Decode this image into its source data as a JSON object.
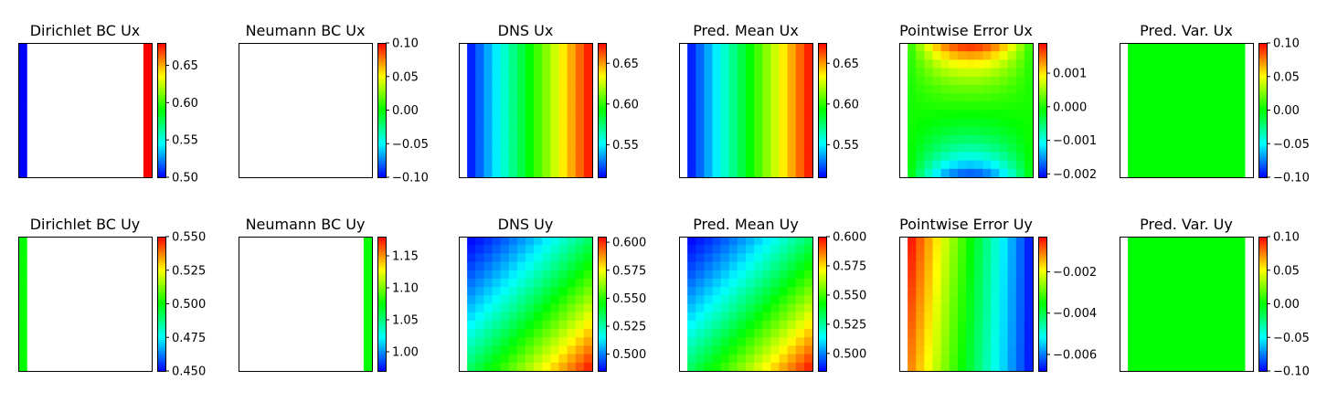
{
  "colormap": [
    "#0000ff",
    "#00ffff",
    "#00ff00",
    "#ffff00",
    "#ff0000"
  ],
  "chart_data": [
    {
      "type": "heatmap",
      "title": "Dirichlet BC Ux",
      "field": "dirichlet_x",
      "masked": true,
      "range": [
        0.5,
        0.68
      ],
      "grid": [
        16,
        16
      ],
      "colorbar_ticks": [
        "0.65",
        "0.60",
        "0.55",
        "0.50"
      ],
      "colorbar_values": [
        0.65,
        0.6,
        0.55,
        0.5
      ]
    },
    {
      "type": "heatmap",
      "title": "Neumann BC Ux",
      "field": "empty",
      "masked": true,
      "range": [
        -0.1,
        0.1
      ],
      "grid": [
        16,
        16
      ],
      "colorbar_ticks": [
        "0.10",
        "0.05",
        "0.00",
        "−0.05",
        "−0.10"
      ],
      "colorbar_values": [
        0.1,
        0.05,
        0.0,
        -0.05,
        -0.1
      ]
    },
    {
      "type": "heatmap",
      "title": "DNS Ux",
      "field": "linear_x",
      "masked": true,
      "range": [
        0.51,
        0.675
      ],
      "grid": [
        16,
        16
      ],
      "colorbar_ticks": [
        "0.65",
        "0.60",
        "0.55"
      ],
      "colorbar_values": [
        0.65,
        0.6,
        0.55
      ]
    },
    {
      "type": "heatmap",
      "title": "Pred. Mean Ux",
      "field": "linear_x",
      "masked": true,
      "range": [
        0.51,
        0.675
      ],
      "grid": [
        16,
        16
      ],
      "colorbar_ticks": [
        "0.65",
        "0.60",
        "0.55"
      ],
      "colorbar_values": [
        0.65,
        0.6,
        0.55
      ]
    },
    {
      "type": "heatmap",
      "title": "Pointwise Error Ux",
      "field": "error_x",
      "masked": true,
      "range": [
        -0.0021,
        0.0019
      ],
      "grid": [
        16,
        16
      ],
      "colorbar_ticks": [
        "0.001",
        "0.000",
        "−0.001",
        "−0.002"
      ],
      "colorbar_values": [
        0.001,
        0.0,
        -0.001,
        -0.002
      ]
    },
    {
      "type": "heatmap",
      "title": "Pred. Var. Ux",
      "field": "constant",
      "masked": true,
      "range": [
        -0.1,
        0.1
      ],
      "grid": [
        16,
        16
      ],
      "colorbar_ticks": [
        "0.10",
        "0.05",
        "0.00",
        "−0.05",
        "−0.10"
      ],
      "colorbar_values": [
        0.1,
        0.05,
        0.0,
        -0.05,
        -0.1
      ]
    },
    {
      "type": "heatmap",
      "title": "Dirichlet BC Uy",
      "field": "dirichlet_y",
      "masked": true,
      "range": [
        0.45,
        0.55
      ],
      "grid": [
        16,
        16
      ],
      "colorbar_ticks": [
        "0.550",
        "0.525",
        "0.500",
        "0.475",
        "0.450"
      ],
      "colorbar_values": [
        0.55,
        0.525,
        0.5,
        0.475,
        0.45
      ]
    },
    {
      "type": "heatmap",
      "title": "Neumann BC Uy",
      "field": "neumann_y",
      "masked": true,
      "range": [
        0.97,
        1.18
      ],
      "grid": [
        16,
        16
      ],
      "colorbar_ticks": [
        "1.15",
        "1.10",
        "1.05",
        "1.00"
      ],
      "colorbar_values": [
        1.15,
        1.1,
        1.05,
        1.0
      ]
    },
    {
      "type": "heatmap",
      "title": "DNS Uy",
      "field": "diag_y",
      "masked": true,
      "range": [
        0.485,
        0.605
      ],
      "grid": [
        16,
        16
      ],
      "colorbar_ticks": [
        "0.600",
        "0.575",
        "0.550",
        "0.525",
        "0.500"
      ],
      "colorbar_values": [
        0.6,
        0.575,
        0.55,
        0.525,
        0.5
      ]
    },
    {
      "type": "heatmap",
      "title": "Pred. Mean Uy",
      "field": "diag_y",
      "masked": true,
      "range": [
        0.485,
        0.6
      ],
      "grid": [
        16,
        16
      ],
      "colorbar_ticks": [
        "0.600",
        "0.575",
        "0.550",
        "0.525",
        "0.500"
      ],
      "colorbar_values": [
        0.6,
        0.575,
        0.55,
        0.525,
        0.5
      ]
    },
    {
      "type": "heatmap",
      "title": "Pointwise Error Uy",
      "field": "error_y",
      "masked": true,
      "range": [
        -0.0068,
        -0.0003
      ],
      "grid": [
        16,
        16
      ],
      "colorbar_ticks": [
        "−0.002",
        "−0.004",
        "−0.006"
      ],
      "colorbar_values": [
        -0.002,
        -0.004,
        -0.006
      ]
    },
    {
      "type": "heatmap",
      "title": "Pred. Var. Uy",
      "field": "constant",
      "masked": true,
      "range": [
        -0.1,
        0.1
      ],
      "grid": [
        16,
        16
      ],
      "colorbar_ticks": [
        "0.10",
        "0.05",
        "0.00",
        "−0.05",
        "−0.10"
      ],
      "colorbar_values": [
        0.1,
        0.05,
        0.0,
        -0.05,
        -0.1
      ]
    }
  ]
}
